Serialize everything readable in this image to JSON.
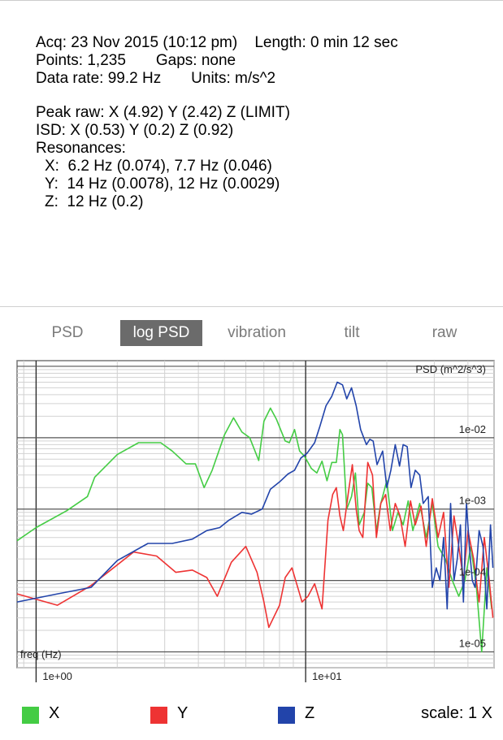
{
  "info": {
    "acq": "Acq: 23 Nov 2015 (10:12 pm)",
    "length": "Length: 0 min 12 sec",
    "points": "Points: 1,235",
    "gaps": "Gaps: none",
    "rate": "Data rate: 99.2 Hz",
    "units": "Units: m/s^2",
    "peak": "Peak raw: X (4.92) Y (2.42) Z (LIMIT)",
    "isd": "ISD: X (0.53) Y (0.2) Z (0.92)",
    "resonances_title": "Resonances:",
    "res_x": "X:  6.2 Hz (0.074), 7.7 Hz (0.046)",
    "res_y": "Y:  14 Hz (0.0078), 12 Hz (0.0029)",
    "res_z": "Z:  12 Hz (0.2)"
  },
  "tabs": [
    {
      "label": "PSD",
      "active": false
    },
    {
      "label": "log PSD",
      "active": true
    },
    {
      "label": "vibration",
      "active": false
    },
    {
      "label": "tilt",
      "active": false
    },
    {
      "label": "raw",
      "active": false
    }
  ],
  "legend": {
    "x_label": "X",
    "y_label": "Y",
    "z_label": "Z",
    "scale": "scale: 1 X"
  },
  "colors": {
    "x": "#44cc44",
    "y": "#ee3333",
    "z": "#2244aa"
  },
  "chart_data": {
    "type": "line",
    "title": "PSD (m^2/s^3)",
    "xlabel": "freq (Hz)",
    "ylabel": "PSD (m^2/s^3)",
    "x_scale": "log",
    "y_scale": "log",
    "xlim": [
      0.85,
      50
    ],
    "ylim": [
      6e-06,
      0.12
    ],
    "x_ticks": [
      "1e+00",
      "1e+01"
    ],
    "y_ticks": [
      "1e-02",
      "1e-03",
      "1e-04",
      "1e-05"
    ],
    "grid": true,
    "series": [
      {
        "name": "X",
        "color": "#44cc44",
        "points": [
          [
            0.85,
            0.00036
          ],
          [
            1.0,
            0.00055
          ],
          [
            1.3,
            0.00095
          ],
          [
            1.55,
            0.0015
          ],
          [
            1.65,
            0.0028
          ],
          [
            2.0,
            0.0058
          ],
          [
            2.4,
            0.0085
          ],
          [
            2.9,
            0.0085
          ],
          [
            3.2,
            0.0065
          ],
          [
            3.6,
            0.0043
          ],
          [
            3.9,
            0.0043
          ],
          [
            4.2,
            0.002
          ],
          [
            4.5,
            0.0035
          ],
          [
            5.0,
            0.011
          ],
          [
            5.4,
            0.019
          ],
          [
            5.8,
            0.012
          ],
          [
            6.2,
            0.01
          ],
          [
            6.7,
            0.0048
          ],
          [
            7.0,
            0.017
          ],
          [
            7.4,
            0.026
          ],
          [
            7.8,
            0.018
          ],
          [
            8.4,
            0.009
          ],
          [
            8.7,
            0.0085
          ],
          [
            9.1,
            0.013
          ],
          [
            9.5,
            0.0065
          ],
          [
            9.9,
            0.0055
          ],
          [
            10.5,
            0.0037
          ],
          [
            11.0,
            0.0032
          ],
          [
            11.5,
            0.0047
          ],
          [
            12.0,
            0.0025
          ],
          [
            12.5,
            0.0045
          ],
          [
            13.0,
            0.0045
          ],
          [
            13.4,
            0.013
          ],
          [
            13.7,
            0.011
          ],
          [
            14.2,
            0.001
          ],
          [
            14.8,
            0.0015
          ],
          [
            15.3,
            0.0032
          ],
          [
            15.8,
            0.0006
          ],
          [
            16.5,
            0.0009
          ],
          [
            17.0,
            0.0023
          ],
          [
            17.6,
            0.002
          ],
          [
            18.3,
            0.0005
          ],
          [
            19.0,
            0.0012
          ],
          [
            20.0,
            0.0025
          ],
          [
            21.0,
            0.0005
          ],
          [
            22.0,
            0.0009
          ],
          [
            23.0,
            0.0006
          ],
          [
            24.0,
            0.0013
          ],
          [
            25.0,
            0.0005
          ],
          [
            26.5,
            0.0012
          ],
          [
            28.0,
            0.0004
          ],
          [
            29.5,
            0.0012
          ],
          [
            31.0,
            0.0003
          ],
          [
            33.0,
            0.0002
          ],
          [
            35.0,
            0.0001
          ],
          [
            37.0,
            6e-05
          ],
          [
            39.0,
            0.0001
          ],
          [
            41.0,
            0.0003
          ],
          [
            43.0,
            8e-05
          ],
          [
            45.0,
            1e-05
          ],
          [
            47.0,
            0.00015
          ],
          [
            49.0,
            4e-05
          ]
        ]
      },
      {
        "name": "Y",
        "color": "#ee3333",
        "points": [
          [
            0.85,
            6.5e-05
          ],
          [
            1.2,
            4.5e-05
          ],
          [
            1.6,
            8.5e-05
          ],
          [
            2.3,
            0.00025
          ],
          [
            2.8,
            0.00022
          ],
          [
            3.3,
            0.00013
          ],
          [
            3.8,
            0.00014
          ],
          [
            4.3,
            0.00011
          ],
          [
            4.7,
            6e-05
          ],
          [
            5.3,
            0.00018
          ],
          [
            6.0,
            0.0003
          ],
          [
            6.6,
            0.00013
          ],
          [
            7.0,
            5e-05
          ],
          [
            7.3,
            2.2e-05
          ],
          [
            8.0,
            4.5e-05
          ],
          [
            8.4,
            0.00011
          ],
          [
            8.9,
            0.00015
          ],
          [
            9.3,
            8.5e-05
          ],
          [
            9.7,
            5e-05
          ],
          [
            10.2,
            6e-05
          ],
          [
            10.8,
            9e-05
          ],
          [
            11.5,
            4e-05
          ],
          [
            12.1,
            0.0007
          ],
          [
            12.6,
            0.0016
          ],
          [
            13.0,
            0.002
          ],
          [
            13.4,
            0.0008
          ],
          [
            13.8,
            0.0005
          ],
          [
            14.4,
            0.0017
          ],
          [
            14.9,
            0.0042
          ],
          [
            15.4,
            0.001
          ],
          [
            15.8,
            0.0005
          ],
          [
            16.3,
            0.0004
          ],
          [
            17.0,
            0.0045
          ],
          [
            17.7,
            0.003
          ],
          [
            18.3,
            0.0004
          ],
          [
            19.0,
            0.0012
          ],
          [
            19.8,
            0.0016
          ],
          [
            20.6,
            0.0005
          ],
          [
            21.5,
            0.0012
          ],
          [
            22.4,
            0.0008
          ],
          [
            23.4,
            0.0003
          ],
          [
            24.5,
            0.0013
          ],
          [
            25.5,
            0.0006
          ],
          [
            26.8,
            0.0011
          ],
          [
            28.0,
            0.0003
          ],
          [
            29.5,
            0.0014
          ],
          [
            31.0,
            0.0004
          ],
          [
            32.5,
            0.0009
          ],
          [
            34.0,
            8e-05
          ],
          [
            35.5,
            0.0008
          ],
          [
            37.0,
            0.0003
          ],
          [
            38.5,
            0.0001
          ],
          [
            40.0,
            0.0005
          ],
          [
            42.0,
            0.0002
          ],
          [
            44.0,
            5e-05
          ],
          [
            46.0,
            0.0004
          ],
          [
            48.0,
            0.0001
          ],
          [
            49.5,
            3e-05
          ]
        ]
      },
      {
        "name": "Z",
        "color": "#2244aa",
        "points": [
          [
            0.85,
            5e-05
          ],
          [
            1.2,
            6.5e-05
          ],
          [
            1.6,
            8e-05
          ],
          [
            2.0,
            0.00019
          ],
          [
            2.6,
            0.00033
          ],
          [
            3.2,
            0.00033
          ],
          [
            3.8,
            0.00038
          ],
          [
            4.3,
            0.0005
          ],
          [
            4.8,
            0.00055
          ],
          [
            5.2,
            0.0007
          ],
          [
            5.8,
            0.0009
          ],
          [
            6.3,
            0.00085
          ],
          [
            6.9,
            0.001
          ],
          [
            7.4,
            0.0019
          ],
          [
            8.0,
            0.0024
          ],
          [
            8.6,
            0.0031
          ],
          [
            9.1,
            0.0035
          ],
          [
            9.6,
            0.0052
          ],
          [
            10.1,
            0.006
          ],
          [
            10.8,
            0.0085
          ],
          [
            11.3,
            0.0145
          ],
          [
            11.9,
            0.028
          ],
          [
            12.5,
            0.038
          ],
          [
            13.1,
            0.06
          ],
          [
            13.7,
            0.055
          ],
          [
            14.2,
            0.035
          ],
          [
            14.8,
            0.05
          ],
          [
            15.4,
            0.028
          ],
          [
            16.0,
            0.013
          ],
          [
            16.8,
            0.008
          ],
          [
            17.3,
            0.0095
          ],
          [
            17.8,
            0.009
          ],
          [
            18.4,
            0.0042
          ],
          [
            19.3,
            0.0065
          ],
          [
            20.0,
            0.002
          ],
          [
            20.7,
            0.0035
          ],
          [
            21.5,
            0.008
          ],
          [
            22.3,
            0.004
          ],
          [
            23.0,
            0.008
          ],
          [
            23.8,
            0.0075
          ],
          [
            24.6,
            0.002
          ],
          [
            25.5,
            0.0035
          ],
          [
            26.5,
            0.003
          ],
          [
            27.3,
            0.0012
          ],
          [
            28.5,
            0.0015
          ],
          [
            29.5,
            8e-05
          ],
          [
            30.5,
            0.00015
          ],
          [
            31.5,
            0.0001
          ],
          [
            32.5,
            0.0004
          ],
          [
            33.5,
            4e-05
          ],
          [
            34.5,
            0.0012
          ],
          [
            35.5,
            0.0001
          ],
          [
            36.5,
            0.0002
          ],
          [
            37.5,
            0.0006
          ],
          [
            38.5,
            5e-05
          ],
          [
            39.5,
            0.0012
          ],
          [
            40.5,
            0.0003
          ],
          [
            41.5,
            0.0001
          ],
          [
            42.5,
            8e-05
          ],
          [
            44.0,
            0.0005
          ],
          [
            45.5,
            0.0003
          ],
          [
            47.0,
            4e-05
          ],
          [
            48.5,
            0.0006
          ],
          [
            49.5,
            0.00015
          ]
        ]
      }
    ]
  }
}
